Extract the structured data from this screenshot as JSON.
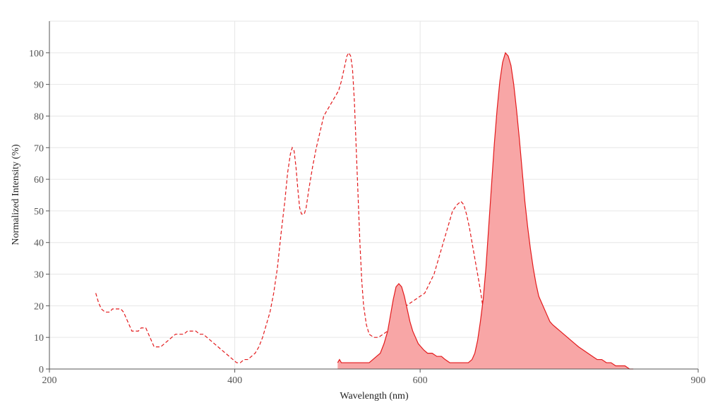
{
  "chart_data": {
    "type": "area",
    "title": "",
    "xlabel": "Wavelength (nm)",
    "ylabel": "Normalized Intensity (%)",
    "xlim": [
      200,
      900
    ],
    "ylim": [
      0,
      110
    ],
    "x_ticks": [
      200,
      400,
      600,
      900
    ],
    "y_ticks": [
      0,
      10,
      20,
      30,
      40,
      50,
      60,
      70,
      80,
      90,
      100
    ],
    "grid": true,
    "legend": "none",
    "colors": {
      "series": "#e31a1c",
      "fill": "#f8a6a6",
      "grid": "#e6e6e6",
      "axis": "#555555"
    },
    "series": [
      {
        "style": "dashed-line",
        "points": [
          [
            250,
            24
          ],
          [
            253,
            21
          ],
          [
            256,
            19
          ],
          [
            260,
            18
          ],
          [
            265,
            18
          ],
          [
            268,
            19
          ],
          [
            272,
            19
          ],
          [
            277,
            19
          ],
          [
            280,
            18
          ],
          [
            283,
            16
          ],
          [
            286,
            14
          ],
          [
            289,
            12
          ],
          [
            293,
            12
          ],
          [
            296,
            12
          ],
          [
            299,
            13
          ],
          [
            304,
            13
          ],
          [
            307,
            11
          ],
          [
            310,
            9
          ],
          [
            313,
            7
          ],
          [
            316,
            7
          ],
          [
            320,
            7
          ],
          [
            324,
            8
          ],
          [
            328,
            9
          ],
          [
            332,
            10
          ],
          [
            336,
            11
          ],
          [
            341,
            11
          ],
          [
            345,
            11
          ],
          [
            349,
            12
          ],
          [
            354,
            12
          ],
          [
            358,
            12
          ],
          [
            362,
            11
          ],
          [
            366,
            11
          ],
          [
            370,
            10
          ],
          [
            374,
            9
          ],
          [
            378,
            8
          ],
          [
            382,
            7
          ],
          [
            386,
            6
          ],
          [
            390,
            5
          ],
          [
            394,
            4
          ],
          [
            398,
            3
          ],
          [
            402,
            2
          ],
          [
            406,
            2
          ],
          [
            410,
            3
          ],
          [
            414,
            3
          ],
          [
            418,
            4
          ],
          [
            422,
            5
          ],
          [
            426,
            7
          ],
          [
            430,
            10
          ],
          [
            434,
            14
          ],
          [
            438,
            18
          ],
          [
            442,
            24
          ],
          [
            446,
            32
          ],
          [
            450,
            43
          ],
          [
            454,
            53
          ],
          [
            457,
            62
          ],
          [
            460,
            68
          ],
          [
            462,
            70
          ],
          [
            464,
            69
          ],
          [
            466,
            64
          ],
          [
            468,
            57
          ],
          [
            470,
            51
          ],
          [
            472,
            49
          ],
          [
            475,
            49
          ],
          [
            477,
            51
          ],
          [
            480,
            57
          ],
          [
            484,
            64
          ],
          [
            488,
            70
          ],
          [
            492,
            75
          ],
          [
            496,
            80
          ],
          [
            500,
            82
          ],
          [
            504,
            84
          ],
          [
            508,
            86
          ],
          [
            512,
            88
          ],
          [
            515,
            91
          ],
          [
            518,
            95
          ],
          [
            521,
            99
          ],
          [
            523,
            100
          ],
          [
            525,
            99
          ],
          [
            527,
            95
          ],
          [
            529,
            85
          ],
          [
            531,
            70
          ],
          [
            533,
            55
          ],
          [
            535,
            40
          ],
          [
            537,
            28
          ],
          [
            539,
            20
          ],
          [
            542,
            14
          ],
          [
            545,
            11
          ],
          [
            550,
            10
          ],
          [
            555,
            10
          ],
          [
            560,
            11
          ],
          [
            565,
            12
          ],
          [
            570,
            14
          ],
          [
            575,
            16
          ],
          [
            580,
            18
          ],
          [
            585,
            20
          ],
          [
            590,
            21
          ],
          [
            595,
            22
          ],
          [
            600,
            23
          ],
          [
            605,
            24
          ],
          [
            610,
            27
          ],
          [
            615,
            30
          ],
          [
            620,
            35
          ],
          [
            625,
            40
          ],
          [
            630,
            45
          ],
          [
            635,
            50
          ],
          [
            640,
            52
          ],
          [
            644,
            53
          ],
          [
            647,
            52
          ],
          [
            650,
            49
          ],
          [
            653,
            45
          ],
          [
            656,
            40
          ],
          [
            659,
            35
          ],
          [
            662,
            30
          ],
          [
            665,
            25
          ],
          [
            668,
            19
          ],
          [
            671,
            14
          ],
          [
            674,
            10
          ],
          [
            677,
            7
          ],
          [
            680,
            5
          ],
          [
            684,
            3
          ],
          [
            688,
            2
          ],
          [
            692,
            1
          ],
          [
            696,
            0
          ]
        ]
      },
      {
        "style": "filled-area",
        "points": [
          [
            511,
            2
          ],
          [
            513,
            3
          ],
          [
            515,
            2
          ],
          [
            520,
            2
          ],
          [
            525,
            2
          ],
          [
            530,
            2
          ],
          [
            535,
            2
          ],
          [
            540,
            2
          ],
          [
            545,
            2
          ],
          [
            549,
            3
          ],
          [
            553,
            4
          ],
          [
            557,
            5
          ],
          [
            561,
            8
          ],
          [
            565,
            12
          ],
          [
            568,
            17
          ],
          [
            571,
            22
          ],
          [
            574,
            26
          ],
          [
            577,
            27
          ],
          [
            580,
            26
          ],
          [
            583,
            23
          ],
          [
            586,
            19
          ],
          [
            589,
            15
          ],
          [
            592,
            12
          ],
          [
            595,
            10
          ],
          [
            598,
            8
          ],
          [
            601,
            7
          ],
          [
            604,
            6
          ],
          [
            608,
            5
          ],
          [
            613,
            5
          ],
          [
            618,
            4
          ],
          [
            623,
            4
          ],
          [
            627,
            3
          ],
          [
            632,
            2
          ],
          [
            637,
            2
          ],
          [
            642,
            2
          ],
          [
            647,
            2
          ],
          [
            652,
            2
          ],
          [
            656,
            3
          ],
          [
            659,
            5
          ],
          [
            662,
            9
          ],
          [
            665,
            15
          ],
          [
            668,
            22
          ],
          [
            671,
            32
          ],
          [
            674,
            45
          ],
          [
            677,
            58
          ],
          [
            680,
            71
          ],
          [
            683,
            82
          ],
          [
            686,
            91
          ],
          [
            689,
            97
          ],
          [
            692,
            100
          ],
          [
            695,
            99
          ],
          [
            698,
            96
          ],
          [
            701,
            90
          ],
          [
            704,
            82
          ],
          [
            707,
            73
          ],
          [
            710,
            63
          ],
          [
            713,
            53
          ],
          [
            716,
            45
          ],
          [
            719,
            38
          ],
          [
            722,
            32
          ],
          [
            725,
            27
          ],
          [
            728,
            23
          ],
          [
            731,
            21
          ],
          [
            734,
            19
          ],
          [
            737,
            17
          ],
          [
            740,
            15
          ],
          [
            743,
            14
          ],
          [
            747,
            13
          ],
          [
            751,
            12
          ],
          [
            755,
            11
          ],
          [
            759,
            10
          ],
          [
            763,
            9
          ],
          [
            767,
            8
          ],
          [
            771,
            7
          ],
          [
            776,
            6
          ],
          [
            781,
            5
          ],
          [
            786,
            4
          ],
          [
            791,
            3
          ],
          [
            796,
            3
          ],
          [
            801,
            2
          ],
          [
            806,
            2
          ],
          [
            811,
            1
          ],
          [
            816,
            1
          ],
          [
            821,
            1
          ],
          [
            826,
            0
          ],
          [
            830,
            0
          ]
        ]
      }
    ]
  }
}
